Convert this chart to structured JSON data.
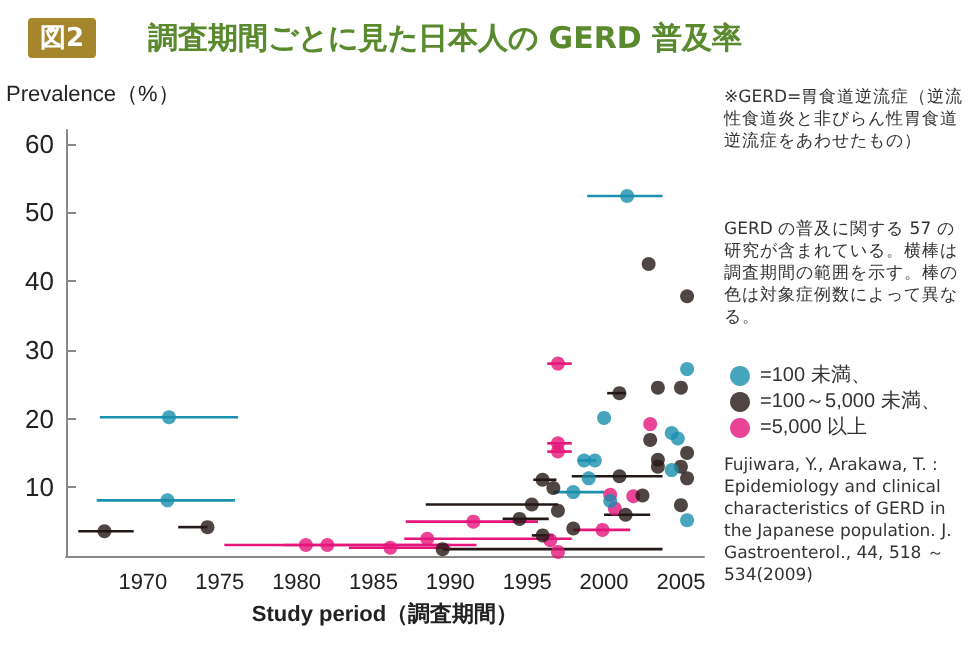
{
  "chart_data": {
    "type": "scatter",
    "title": "調査期間ごとに見た日本人の GERD 普及率",
    "xlabel": "Study period（調査期間）",
    "ylabel": "Prevalence（%）",
    "annotations": [
      "図2",
      "※GERD=胃食道逆流症（逆流性食道炎と非びらん性胃食道逆流症をあわせたもの）",
      "GERD の普及に関する 57 の研究が含まれている。横棒は調査期間の範囲を示す。棒の色は対象症例数によって異なる。",
      "Fujiwara, Y., Arakawa, T. : Epidemiology and clinical characteristics of GERD in the Japanese population. J. Gastroenterol., 44, 518 ～ 534(2009)"
    ],
    "xlim": [
      1965,
      2006.5
    ],
    "xticks": [
      1970,
      1975,
      1980,
      1985,
      1990,
      1995,
      2000,
      2005
    ],
    "ylim": [
      0,
      62
    ],
    "yticks": [
      10,
      20,
      30,
      40,
      50,
      60
    ],
    "grid": false,
    "legend": "right",
    "marker": "circle",
    "series": [
      {
        "name": "=100 未満、",
        "color": "#1a8fae",
        "x": [
          1971.7,
          1971.6,
          2001.5,
          2005.4,
          2000.0,
          2004.4,
          2004.8,
          1998.7,
          1999.4,
          2004.4,
          1999.0,
          1998.0,
          2000.4,
          2005.4
        ],
        "values": [
          20.2,
          8.1,
          52.4,
          27.2,
          20.1,
          17.9,
          17.1,
          13.9,
          13.9,
          12.5,
          11.3,
          9.3,
          8.0,
          5.2
        ],
        "xerrors": [
          [
            1967.2,
            1976.2
          ],
          [
            1967.0,
            1976.0
          ],
          [
            1998.9,
            2003.8
          ],
          null,
          null,
          null,
          null,
          [
            1998.3,
            1999.5
          ],
          null,
          null,
          null,
          [
            1996.7,
            2000.0
          ],
          null,
          null
        ]
      },
      {
        "name": "=100～5,000 未満、",
        "color": "#231815",
        "x": [
          1967.5,
          1974.2,
          2002.9,
          2005.4,
          2001.0,
          2003.5,
          2005.0,
          2003.0,
          2005.4,
          2003.5,
          2003.5,
          2005.0,
          2001.0,
          2005.4,
          1996.0,
          1996.7,
          2002.5,
          1995.3,
          2005.0,
          1997.0,
          2001.4,
          1994.5,
          1998.0,
          1996.0,
          1989.5
        ],
        "values": [
          3.6,
          4.2,
          42.5,
          37.8,
          23.7,
          24.5,
          24.5,
          16.9,
          15.0,
          14.0,
          13.0,
          13.0,
          11.6,
          11.3,
          11.1,
          9.9,
          8.8,
          7.5,
          7.4,
          6.6,
          6.0,
          5.4,
          4.0,
          3.0,
          1.0
        ],
        "xerrors": [
          [
            1965.8,
            1969.4
          ],
          [
            1972.3,
            1974.2
          ],
          null,
          null,
          [
            2000.2,
            2001.4
          ],
          null,
          null,
          null,
          null,
          null,
          null,
          null,
          [
            1997.9,
            2003.8
          ],
          null,
          [
            1995.4,
            1996.9
          ],
          null,
          null,
          [
            1988.4,
            1997.0
          ],
          null,
          null,
          [
            2000.0,
            2003.0
          ],
          [
            1993.4,
            1996.4
          ],
          null,
          [
            1995.3,
            1996.7
          ],
          [
            1989.5,
            2003.8
          ]
        ]
      },
      {
        "name": "=5,000 以上",
        "color": "#e5157c",
        "x": [
          1980.6,
          1982.0,
          1986.1,
          1997.0,
          2003.0,
          1997.0,
          1997.0,
          2000.4,
          2001.9,
          2000.7,
          1991.5,
          1999.9,
          1988.5,
          1996.5,
          1997.0
        ],
        "values": [
          1.6,
          1.6,
          1.2,
          28.0,
          19.2,
          16.4,
          15.2,
          8.9,
          8.7,
          6.9,
          5.0,
          3.8,
          2.5,
          2.3,
          0.6
        ],
        "xerrors": [
          [
            1975.3,
            1991.7
          ],
          [
            1979.2,
            1990.0
          ],
          [
            1983.4,
            1990.0
          ],
          [
            1996.3,
            1997.9
          ],
          null,
          [
            1996.3,
            1997.9
          ],
          [
            1996.3,
            1997.9
          ],
          null,
          null,
          null,
          [
            1987.1,
            1995.7
          ],
          [
            1998.0,
            2001.7
          ],
          [
            1987.0,
            1997.9
          ],
          null,
          null
        ]
      }
    ]
  }
}
